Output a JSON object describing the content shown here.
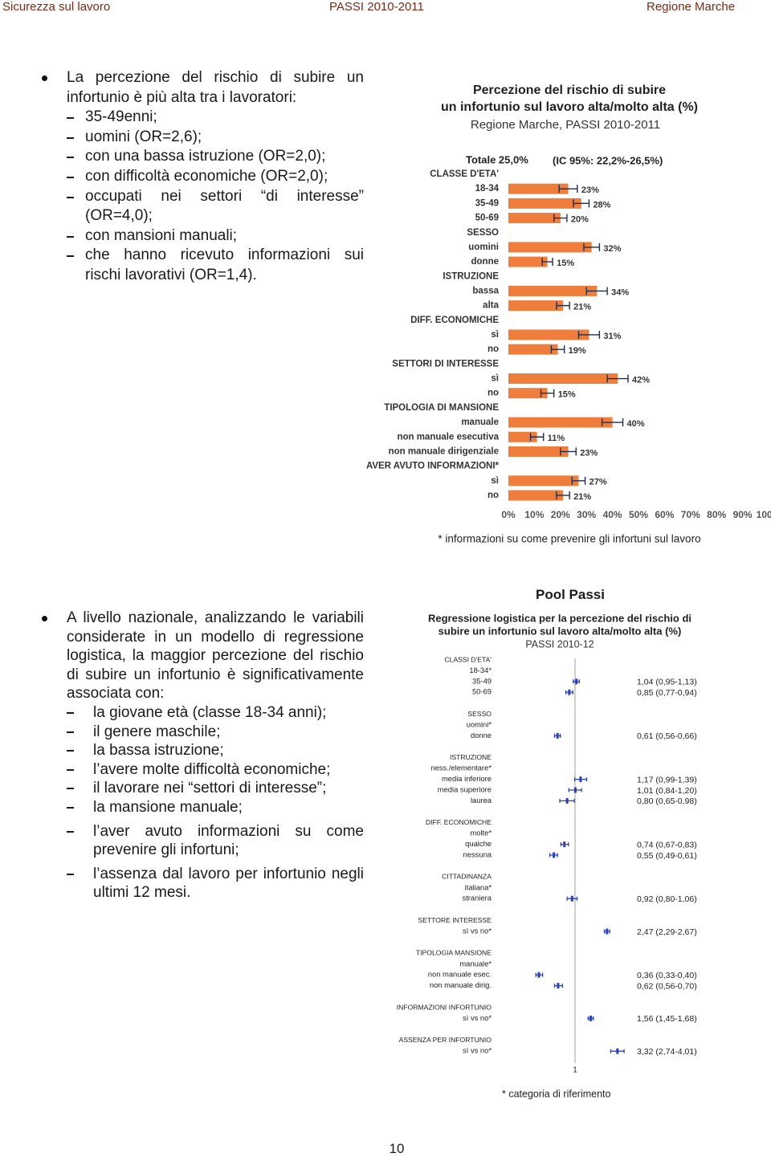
{
  "header": {
    "left": "Sicurezza sul lavoro",
    "center": "PASSI 2010-2011",
    "right": "Regione Marche"
  },
  "section1": {
    "intro": "La percezione del rischio di subire un infortunio è più alta tra i lavoratori:",
    "items": [
      "35-49enni;",
      "uomini (OR=2,6);",
      "con una bassa istruzione (OR=2,0);",
      "con difficoltà economiche (OR=2,0);",
      "occupati nei settori “di interesse” (OR=4,0);",
      "con mansioni manuali;",
      "che hanno ricevuto informazioni sui rischi lavorativi (OR=1,4)."
    ]
  },
  "section2": {
    "heading": "Pool Passi",
    "intro": "A livello nazionale, analizzando le variabili considerate in un modello di regressione logistica, la maggior percezione del rischio di subire un infortunio è significativamente associata con:",
    "items": [
      "la giovane età (classe 18-34 anni);",
      "il genere maschile;",
      "la bassa istruzione;",
      "l’avere molte difficoltà economiche;",
      "il lavorare nei “settori di interesse”;",
      "la mansione manuale;",
      "l’aver avuto informazioni su come prevenire gli infortuni;",
      "l’assenza dal lavoro per infortunio negli ultimi 12 mesi."
    ]
  },
  "chart_data": [
    {
      "type": "bar",
      "title": [
        "Percezione del rischio di subire",
        "un infortunio sul lavoro alta/molto alta (%)"
      ],
      "subtitle": "Regione Marche, PASSI 2010-2011",
      "annotations": [
        "Totale 25,0%",
        "(IC 95%: 22,2%-26,5%)"
      ],
      "color": "#ef7d3b",
      "error_color": "#1f2f4f",
      "groups": [
        {
          "name": "CLASSE D'ETA'",
          "categories": [
            "18-34",
            "35-49",
            "50-69"
          ],
          "values": [
            23,
            28,
            20
          ],
          "errors": [
            3.5,
            3,
            2.5
          ],
          "value_labels": [
            "23%",
            "28%",
            "20%"
          ]
        },
        {
          "name": "SESSO",
          "categories": [
            "uomini",
            "donne"
          ],
          "values": [
            32,
            15
          ],
          "errors": [
            3,
            2
          ],
          "value_labels": [
            "32%",
            "15%"
          ]
        },
        {
          "name": "ISTRUZIONE",
          "categories": [
            "bassa",
            "alta"
          ],
          "values": [
            34,
            21
          ],
          "errors": [
            4,
            2.5
          ],
          "value_labels": [
            "34%",
            "21%"
          ]
        },
        {
          "name": "DIFF. ECONOMICHE",
          "categories": [
            "sì",
            "no"
          ],
          "values": [
            31,
            19
          ],
          "errors": [
            4,
            2.5
          ],
          "value_labels": [
            "31%",
            "19%"
          ]
        },
        {
          "name": "SETTORI DI INTERESSE",
          "categories": [
            "sì",
            "no"
          ],
          "values": [
            42,
            15
          ],
          "errors": [
            4,
            2.5
          ],
          "value_labels": [
            "42%",
            "15%"
          ]
        },
        {
          "name": "TIPOLOGIA DI MANSIONE",
          "categories": [
            "manuale",
            "non manuale esecutiva",
            "non manuale dirigenziale"
          ],
          "values": [
            40,
            11,
            23
          ],
          "errors": [
            4,
            2.5,
            3
          ],
          "value_labels": [
            "40%",
            "11%",
            "23%"
          ]
        },
        {
          "name": "AVER AVUTO INFORMAZIONI*",
          "categories": [
            "sì",
            "no"
          ],
          "values": [
            27,
            21
          ],
          "errors": [
            2.5,
            2.5
          ],
          "value_labels": [
            "27%",
            "21%"
          ]
        }
      ],
      "xlim": [
        0,
        100
      ],
      "xticks": [
        {
          "value": 0,
          "label": "0%"
        },
        {
          "value": 10,
          "label": "10%"
        },
        {
          "value": 20,
          "label": "20%"
        },
        {
          "value": 30,
          "label": "30%"
        },
        {
          "value": 40,
          "label": "40%"
        },
        {
          "value": 50,
          "label": "50%"
        },
        {
          "value": 60,
          "label": "60%"
        },
        {
          "value": 70,
          "label": "70%"
        },
        {
          "value": 80,
          "label": "80%"
        },
        {
          "value": 90,
          "label": "90%"
        },
        {
          "value": 100,
          "label": "100%"
        }
      ],
      "grid": false,
      "note": "* informazioni su come prevenire gli infortuni sul lavoro"
    },
    {
      "type": "forest",
      "title": [
        "Regressione logistica per la percezione del rischio di",
        "subire un infortunio sul lavoro alta/molto alta (%)"
      ],
      "subtitle": "PASSI 2010-12",
      "color": "#2a3fbd",
      "log_scale": true,
      "xlim": [
        0.15,
        8
      ],
      "xticks": [
        1
      ],
      "groups": [
        {
          "name": "CLASSI D'ETA'",
          "categories": [
            "18-34*",
            "35-49",
            "50-69"
          ],
          "values": [
            null,
            1.04,
            0.85
          ],
          "lower": [
            null,
            0.95,
            0.77
          ],
          "upper": [
            null,
            1.13,
            0.94
          ],
          "value_labels": [
            null,
            "1,04 (0,95-1,13)",
            "0,85 (0,77-0,94)"
          ]
        },
        {
          "name": "SESSO",
          "categories": [
            "uomini*",
            "donne"
          ],
          "values": [
            null,
            0.61
          ],
          "lower": [
            null,
            0.56
          ],
          "upper": [
            null,
            0.66
          ],
          "value_labels": [
            null,
            "0,61 (0,56-0,66)"
          ]
        },
        {
          "name": "ISTRUZIONE",
          "categories": [
            "ness./elementare*",
            "media inferiore",
            "media superiore",
            "laurea"
          ],
          "values": [
            null,
            1.17,
            1.01,
            0.8
          ],
          "lower": [
            null,
            0.99,
            0.84,
            0.65
          ],
          "upper": [
            null,
            1.39,
            1.2,
            0.98
          ],
          "value_labels": [
            null,
            "1,17 (0,99-1,39)",
            "1,01 (0,84-1,20)",
            "0,80 (0,65-0,98)"
          ]
        },
        {
          "name": "DIFF. ECONOMICHE",
          "categories": [
            "molte*",
            "qualche",
            "nessuna"
          ],
          "values": [
            null,
            0.74,
            0.55
          ],
          "lower": [
            null,
            0.67,
            0.49
          ],
          "upper": [
            null,
            0.83,
            0.61
          ],
          "value_labels": [
            null,
            "0,74 (0,67-0,83)",
            "0,55 (0,49-0,61)"
          ]
        },
        {
          "name": "CITTADINANZA",
          "categories": [
            "italiana*",
            "straniera"
          ],
          "values": [
            null,
            0.92
          ],
          "lower": [
            null,
            0.8
          ],
          "upper": [
            null,
            1.06
          ],
          "value_labels": [
            null,
            "0,92 (0,80-1,06)"
          ]
        },
        {
          "name": "SETTORE INTERESSE",
          "categories": [
            "sì vs no*"
          ],
          "values": [
            2.47
          ],
          "lower": [
            2.29
          ],
          "upper": [
            2.67
          ],
          "value_labels": [
            "2,47 (2,29-2,67)"
          ]
        },
        {
          "name": "TIPOLOGIA MANSIONE",
          "categories": [
            "manuale*",
            "non manuale esec.",
            "non manuale dirig."
          ],
          "values": [
            null,
            0.36,
            0.62
          ],
          "lower": [
            null,
            0.33,
            0.56
          ],
          "upper": [
            null,
            0.4,
            0.7
          ],
          "value_labels": [
            null,
            "0,36 (0,33-0,40)",
            "0,62 (0,56-0,70)"
          ]
        },
        {
          "name": "INFORMAZIONI INFORTUNIO",
          "categories": [
            "sì vs no*"
          ],
          "values": [
            1.56
          ],
          "lower": [
            1.45
          ],
          "upper": [
            1.68
          ],
          "value_labels": [
            "1,56 (1,45-1,68)"
          ]
        },
        {
          "name": "ASSENZA PER INFORTUNIO",
          "categories": [
            "sì vs no*"
          ],
          "values": [
            3.32
          ],
          "lower": [
            2.74
          ],
          "upper": [
            4.01
          ],
          "value_labels": [
            "3,32 (2,74-4,01)"
          ]
        }
      ],
      "note": "* categoria di riferimento"
    }
  ],
  "page_number": 10
}
